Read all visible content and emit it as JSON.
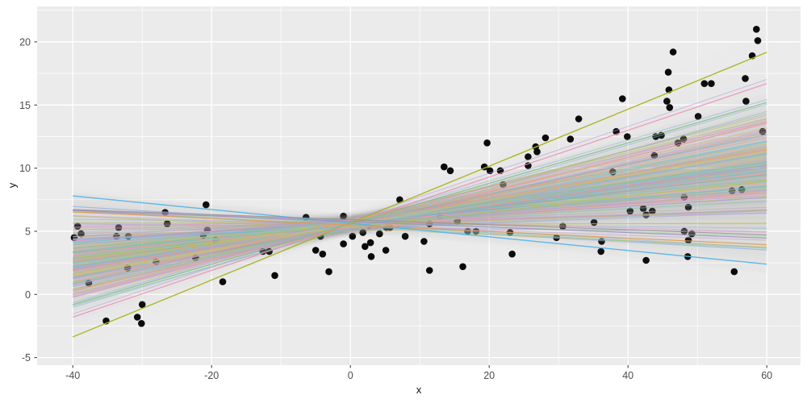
{
  "colors": {
    "background": "#FFFFFF",
    "panel": "#EBEBEB",
    "grid": "#FFFFFF",
    "tick_label": "#4D4D4D",
    "tick_mark": "#333333",
    "axis_title": "#111111",
    "point": "#0A0A0A",
    "ribbon": "#999999"
  },
  "chart_data": {
    "type": "scatter",
    "title": "",
    "xlabel": "x",
    "ylabel": "y",
    "xlim": [
      -45.1,
      64.9
    ],
    "ylim": [
      -5.6,
      22.8
    ],
    "x_ticks": [
      -40,
      -20,
      0,
      20,
      40,
      60
    ],
    "y_ticks": [
      -5,
      0,
      5,
      10,
      15,
      20
    ],
    "x_minor": [
      -30,
      -10,
      10,
      30,
      50
    ],
    "y_minor": [
      -2.5,
      2.5,
      7.5,
      12.5,
      17.5,
      22.5
    ],
    "grid": "on",
    "legend": "none",
    "points": [
      [
        -39.3,
        5.4
      ],
      [
        -38.8,
        4.8
      ],
      [
        -39.8,
        4.5
      ],
      [
        -26.7,
        6.5
      ],
      [
        -20.8,
        7.1
      ],
      [
        -37.7,
        0.9
      ],
      [
        -18.4,
        1.0
      ],
      [
        -30.0,
        -0.8
      ],
      [
        -30.7,
        -1.8
      ],
      [
        -30.1,
        -2.3
      ],
      [
        -35.2,
        -2.1
      ],
      [
        -10.9,
        1.5
      ],
      [
        -3.1,
        1.8
      ],
      [
        -4.0,
        3.2
      ],
      [
        -5.0,
        3.5
      ],
      [
        2.1,
        3.8
      ],
      [
        2.9,
        4.1
      ],
      [
        3.0,
        3.0
      ],
      [
        5.1,
        3.5
      ],
      [
        10.6,
        4.2
      ],
      [
        11.4,
        1.9
      ],
      [
        16.2,
        2.2
      ],
      [
        23.3,
        3.2
      ],
      [
        29.7,
        4.5
      ],
      [
        36.2,
        4.2
      ],
      [
        36.1,
        3.4
      ],
      [
        42.6,
        2.7
      ],
      [
        48.6,
        3.0
      ],
      [
        55.3,
        1.8
      ],
      [
        13.5,
        10.1
      ],
      [
        14.4,
        9.8
      ],
      [
        19.7,
        12.0
      ],
      [
        32.9,
        13.9
      ],
      [
        28.1,
        12.4
      ],
      [
        39.2,
        15.5
      ],
      [
        45.8,
        17.6
      ],
      [
        46.5,
        19.2
      ],
      [
        45.9,
        16.2
      ],
      [
        51.0,
        16.7
      ],
      [
        52.0,
        16.7
      ],
      [
        58.5,
        21.0
      ],
      [
        58.7,
        20.1
      ],
      [
        57.9,
        18.9
      ],
      [
        -33.4,
        5.3
      ],
      [
        -33.7,
        4.6
      ],
      [
        -32.0,
        4.6
      ],
      [
        -26.4,
        5.6
      ],
      [
        -20.6,
        5.1
      ],
      [
        -21.2,
        4.7
      ],
      [
        -19.4,
        4.3
      ],
      [
        -28.0,
        2.6
      ],
      [
        -32.1,
        2.1
      ],
      [
        -22.3,
        2.9
      ],
      [
        -12.6,
        3.4
      ],
      [
        -11.7,
        3.4
      ],
      [
        -6.4,
        6.1
      ],
      [
        -1.0,
        6.2
      ],
      [
        -4.3,
        4.6
      ],
      [
        -1.0,
        4.0
      ],
      [
        0.3,
        4.6
      ],
      [
        1.8,
        4.9
      ],
      [
        2.7,
        5.5
      ],
      [
        4.2,
        4.8
      ],
      [
        5.2,
        5.3
      ],
      [
        5.7,
        5.3
      ],
      [
        7.9,
        4.6
      ],
      [
        7.1,
        7.5
      ],
      [
        11.4,
        5.6
      ],
      [
        12.9,
        6.2
      ],
      [
        15.4,
        5.8
      ],
      [
        16.9,
        5.0
      ],
      [
        18.1,
        5.0
      ],
      [
        19.3,
        10.1
      ],
      [
        20.1,
        9.8
      ],
      [
        21.6,
        9.8
      ],
      [
        22.0,
        8.7
      ],
      [
        23.0,
        4.9
      ],
      [
        25.6,
        10.9
      ],
      [
        26.9,
        11.3
      ],
      [
        25.6,
        10.2
      ],
      [
        26.7,
        11.7
      ],
      [
        31.7,
        12.3
      ],
      [
        30.6,
        5.4
      ],
      [
        35.1,
        5.7
      ],
      [
        37.8,
        9.7
      ],
      [
        38.3,
        12.9
      ],
      [
        39.9,
        12.5
      ],
      [
        40.3,
        6.6
      ],
      [
        42.2,
        6.8
      ],
      [
        43.5,
        6.6
      ],
      [
        42.6,
        6.3
      ],
      [
        44.0,
        12.5
      ],
      [
        44.8,
        12.6
      ],
      [
        43.8,
        11.0
      ],
      [
        47.2,
        12.0
      ],
      [
        48.1,
        5.0
      ],
      [
        49.2,
        4.8
      ],
      [
        48.7,
        4.3
      ],
      [
        48.1,
        7.7
      ],
      [
        48.7,
        6.9
      ],
      [
        55.0,
        8.2
      ],
      [
        56.4,
        8.3
      ],
      [
        50.1,
        14.1
      ],
      [
        45.6,
        15.3
      ],
      [
        46.0,
        14.8
      ],
      [
        56.9,
        17.1
      ],
      [
        57.0,
        15.3
      ],
      [
        59.4,
        12.9
      ],
      [
        48.0,
        12.3
      ]
    ],
    "fit_x_range": [
      -40,
      60
    ],
    "ensemble": {
      "count": 110,
      "seed": 42,
      "slope_min": -0.045,
      "slope_max": 0.19,
      "intercept_mean": 5.55,
      "intercept_jitter": 0.7,
      "line_opacity": 0.55,
      "line_width": 1.1,
      "palette": [
        "#E78AC3",
        "#F2A0BE",
        "#E8A17E",
        "#E2B06F",
        "#C9C96A",
        "#B5BC52",
        "#8FCE8F",
        "#74C7A4",
        "#66BDB6",
        "#7FC4E0",
        "#8FB4DE",
        "#9AA7D8",
        "#B29BD4",
        "#C79AC4",
        "#ADADAD",
        "#A6CBA6"
      ],
      "ribbon": {
        "color": "#999999",
        "alpha": 0.013,
        "h0_min": 0.45,
        "h0_range": 0.3,
        "kw_min": 0.02,
        "kw_range": 0.014,
        "waist_x": 2
      }
    },
    "highlight_lines": [
      {
        "slope": 0.2254,
        "intercept": 5.65,
        "color": "#A9B420",
        "opacity": 0.95,
        "width": 1.4
      },
      {
        "slope": -0.054,
        "intercept": 5.64,
        "color": "#55B4E8",
        "opacity": 0.95,
        "width": 1.4
      },
      {
        "slope": 0.185,
        "intercept": 5.6,
        "color": "#F08CB4",
        "opacity": 0.9,
        "width": 1.2
      },
      {
        "slope": 0.16,
        "intercept": 5.6,
        "color": "#7DBE7D",
        "opacity": 0.85,
        "width": 1.2
      },
      {
        "slope": -0.026,
        "intercept": 5.5,
        "color": "#E09A4E",
        "opacity": 0.9,
        "width": 1.2
      },
      {
        "slope": -0.022,
        "intercept": 5.78,
        "color": "#9C8DC3",
        "opacity": 0.85,
        "width": 1.2
      },
      {
        "slope": -0.02,
        "intercept": 5.92,
        "color": "#8F8F8F",
        "opacity": 0.8,
        "width": 1.2
      }
    ]
  }
}
